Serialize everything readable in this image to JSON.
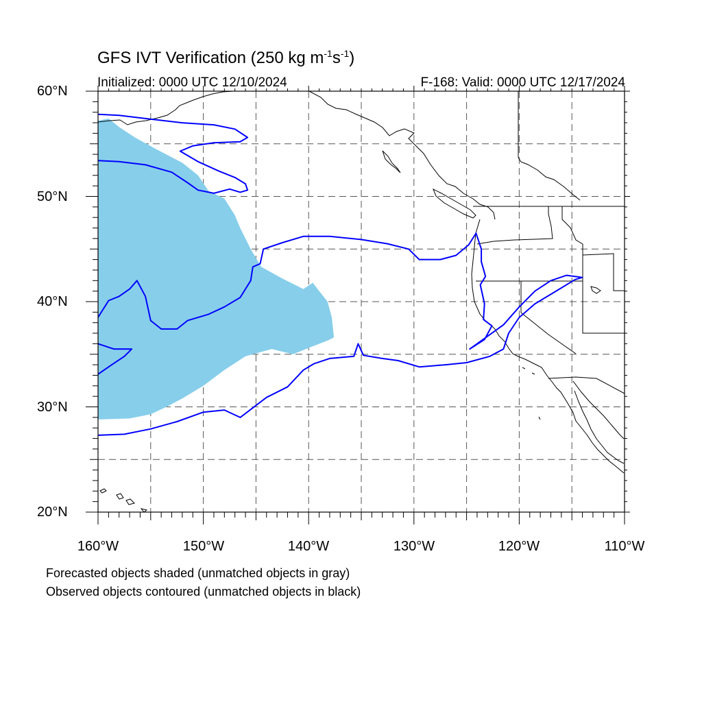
{
  "title": {
    "main": "GFS IVT Verification (250 kg m",
    "sup1": "-1",
    "mid": "s",
    "sup2": "-1",
    "end": ")"
  },
  "subtitle": {
    "initialized": "Initialized: 0000 UTC 12/10/2024",
    "valid": "F-168: Valid: 0000 UTC 12/17/2024"
  },
  "map": {
    "lon_range": [
      -160,
      -110
    ],
    "lat_range": [
      20,
      60
    ],
    "lat_labels": [
      "60°N",
      "50°N",
      "40°N",
      "30°N",
      "20°N"
    ],
    "lon_labels": [
      "160°W",
      "150°W",
      "140°W",
      "130°W",
      "120°W",
      "110°W"
    ],
    "colors": {
      "forecast_shade": "#87ceeb",
      "observed_contour": "#0000ff",
      "coastline": "#000000",
      "gridline": "#555555"
    },
    "forecast_object": [
      [
        -160,
        57.2
      ],
      [
        -159,
        57.4
      ],
      [
        -158,
        56.6
      ],
      [
        -156.5,
        55.6
      ],
      [
        -154.5,
        54.5
      ],
      [
        -152,
        53.2
      ],
      [
        -150.5,
        52
      ],
      [
        -149.5,
        50.5
      ],
      [
        -148,
        49.8
      ],
      [
        -147,
        48.2
      ],
      [
        -146.5,
        47
      ],
      [
        -145.5,
        45
      ],
      [
        -144.5,
        43.3
      ],
      [
        -142.5,
        42.2
      ],
      [
        -140.5,
        41.2
      ],
      [
        -139.6,
        41.8
      ],
      [
        -139,
        41
      ],
      [
        -138.2,
        40
      ],
      [
        -137.8,
        38.5
      ],
      [
        -137.6,
        36.6
      ],
      [
        -138.2,
        36.3
      ],
      [
        -139.5,
        35.8
      ],
      [
        -141.5,
        35
      ],
      [
        -143.5,
        35.5
      ],
      [
        -146,
        34.8
      ],
      [
        -148,
        33.5
      ],
      [
        -150,
        32
      ],
      [
        -152,
        30.8
      ],
      [
        -153.5,
        30
      ],
      [
        -155,
        29.3
      ],
      [
        -157,
        28.9
      ],
      [
        -160,
        28.8
      ]
    ],
    "observed_contours": [
      [
        [
          -160,
          57.8
        ],
        [
          -158,
          57.7
        ],
        [
          -155.5,
          57.4
        ],
        [
          -152,
          57
        ],
        [
          -149,
          56.8
        ],
        [
          -147,
          56.4
        ],
        [
          -145.8,
          55.6
        ],
        [
          -146.5,
          55.2
        ],
        [
          -149,
          55.1
        ],
        [
          -151,
          54.8
        ],
        [
          -152.2,
          54.3
        ],
        [
          -150.5,
          53.3
        ],
        [
          -148.5,
          52.4
        ],
        [
          -147,
          51.8
        ],
        [
          -146,
          51.2
        ],
        [
          -145.8,
          50.6
        ],
        [
          -146.5,
          50.4
        ],
        [
          -147.5,
          50.7
        ],
        [
          -149,
          50.3
        ],
        [
          -150.5,
          50.6
        ],
        [
          -151.5,
          51.3
        ],
        [
          -153,
          52.3
        ],
        [
          -155.5,
          53
        ],
        [
          -158,
          53.3
        ],
        [
          -160,
          53.4
        ]
      ],
      [
        [
          -160,
          38.5
        ],
        [
          -159,
          40.1
        ],
        [
          -158,
          40.5
        ],
        [
          -157,
          41.2
        ],
        [
          -156.3,
          42
        ],
        [
          -155.5,
          40.5
        ],
        [
          -155,
          38.2
        ],
        [
          -154,
          37.4
        ],
        [
          -152.5,
          37.4
        ],
        [
          -151.5,
          38.2
        ],
        [
          -149.5,
          38.8
        ],
        [
          -148,
          39.5
        ],
        [
          -146.5,
          40.4
        ],
        [
          -145.5,
          42
        ],
        [
          -145.3,
          43.3
        ],
        [
          -144.6,
          43.6
        ],
        [
          -144.3,
          45
        ],
        [
          -142.5,
          45.6
        ],
        [
          -140.5,
          46.2
        ],
        [
          -138,
          46.2
        ],
        [
          -135,
          45.9
        ],
        [
          -132.5,
          45.5
        ],
        [
          -130.5,
          45
        ],
        [
          -129.5,
          44
        ],
        [
          -127.5,
          44
        ],
        [
          -126,
          44.4
        ],
        [
          -124.8,
          45.4
        ],
        [
          -124.1,
          46.5
        ],
        [
          -123.6,
          45
        ],
        [
          -123.6,
          43.8
        ],
        [
          -123.2,
          42.4
        ],
        [
          -123.7,
          41.6
        ],
        [
          -123.3,
          39.8
        ],
        [
          -123.4,
          38.3
        ],
        [
          -122.6,
          37.7
        ],
        [
          -123.3,
          36.4
        ],
        [
          -124.7,
          35.5
        ],
        [
          -123.3,
          36.5
        ],
        [
          -121.5,
          37.8
        ],
        [
          -120,
          39.5
        ],
        [
          -118.5,
          41
        ],
        [
          -117,
          42
        ],
        [
          -115.5,
          42.5
        ],
        [
          -114,
          42.3
        ],
        [
          -114.7,
          42.1
        ],
        [
          -116.5,
          41
        ],
        [
          -118.5,
          39.8
        ],
        [
          -120,
          38.5
        ],
        [
          -121,
          37
        ],
        [
          -121.5,
          35.5
        ],
        [
          -122.8,
          34.8
        ],
        [
          -125,
          34.2
        ],
        [
          -127,
          34
        ],
        [
          -129.5,
          33.8
        ],
        [
          -131.5,
          34.4
        ],
        [
          -133,
          34.6
        ],
        [
          -134.8,
          34.9
        ],
        [
          -135.3,
          36
        ],
        [
          -135.7,
          34.8
        ],
        [
          -138,
          34.6
        ],
        [
          -139.5,
          34.1
        ],
        [
          -140.5,
          33.5
        ],
        [
          -142,
          31.9
        ],
        [
          -144,
          30.9
        ],
        [
          -146.5,
          29
        ],
        [
          -148,
          29.7
        ],
        [
          -150,
          29.5
        ],
        [
          -152.5,
          28.6
        ],
        [
          -155,
          27.9
        ],
        [
          -157.5,
          27.4
        ],
        [
          -160,
          27.3
        ]
      ],
      [
        [
          -160,
          36
        ],
        [
          -158.5,
          35.5
        ],
        [
          -156.8,
          35.5
        ],
        [
          -157.5,
          34.8
        ],
        [
          -158.7,
          34
        ],
        [
          -160,
          33.1
        ]
      ]
    ]
  },
  "footnotes": [
    "Forecasted objects shaded (unmatched objects in gray)",
    "Observed objects contoured (unmatched objects in black)"
  ]
}
